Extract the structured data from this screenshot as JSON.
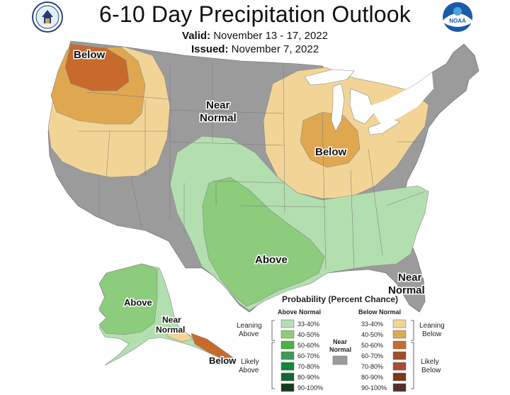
{
  "header": {
    "title": "6-10 Day Precipitation Outlook",
    "valid_label": "Valid:",
    "valid_value": "November 13 - 17, 2022",
    "issued_label": "Issued:",
    "issued_value": "November 7, 2022",
    "noaa_text": "NOAA"
  },
  "map_labels": {
    "pnw_below": "Below",
    "near_normal_line1": "Near",
    "near_normal_line2": "Normal",
    "midwest_below": "Below",
    "south_above": "Above",
    "florida_near_line1": "Near",
    "florida_near_line2": "Normal",
    "alaska_above": "Above",
    "alaska_near_line1": "Near",
    "alaska_near_line2": "Normal",
    "alaska_below": "Below"
  },
  "legend": {
    "title": "Probability (Percent Chance)",
    "above_header": "Above Normal",
    "below_header": "Below Normal",
    "leaning_above_1": "Leaning",
    "leaning_above_2": "Above",
    "likely_above_1": "Likely",
    "likely_above_2": "Above",
    "leaning_below_1": "Leaning",
    "leaning_below_2": "Below",
    "likely_below_1": "Likely",
    "likely_below_2": "Below",
    "near_normal_1": "Near",
    "near_normal_2": "Normal",
    "above_bins": [
      "33-40%",
      "40-50%",
      "50-60%",
      "60-70%",
      "70-80%",
      "80-90%",
      "90-100%"
    ],
    "below_bins": [
      "33-40%",
      "40-50%",
      "50-60%",
      "60-70%",
      "70-80%",
      "80-90%",
      "90-100%"
    ],
    "above_colors": [
      "#b3dfb0",
      "#8ccc7c",
      "#4cb043",
      "#3c9a55",
      "#0c8a3e",
      "#14643a",
      "#13401b"
    ],
    "below_colors": [
      "#f2d596",
      "#dfa850",
      "#c76a2c",
      "#9e4f2a",
      "#a54a3c",
      "#7b3a13",
      "#52302a"
    ],
    "near_color": "#9b9b9b"
  },
  "colors": {
    "near_normal": "#9b9b9b",
    "leaning_below": "#f2d596",
    "below_40_50": "#dfa850",
    "below_50_60": "#c76a2c",
    "leaning_above": "#b3dfb0",
    "above_40_50": "#8ccc7c",
    "water": "#ffffff"
  }
}
